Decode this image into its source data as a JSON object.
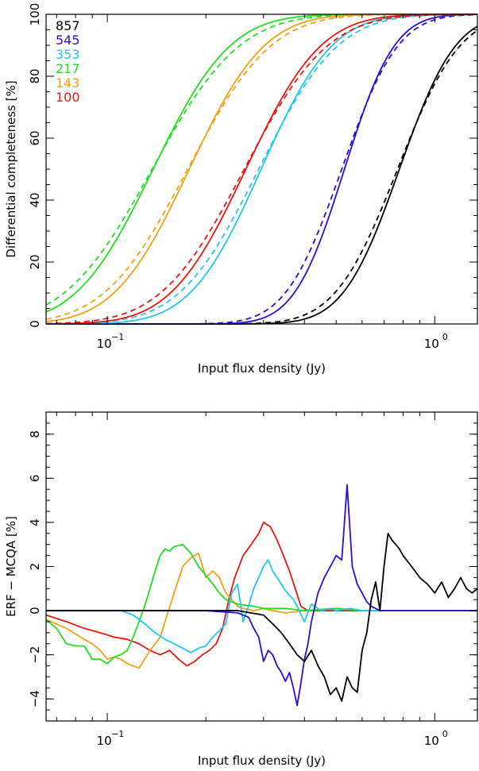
{
  "chart_data": [
    {
      "type": "line",
      "xlabel": "Input flux density (Jy)",
      "ylabel": "Differential completeness [%]",
      "xscale": "log",
      "xlim": [
        0.065,
        1.35
      ],
      "ylim": [
        0,
        100
      ],
      "yticks": [
        0,
        20,
        40,
        60,
        80,
        100
      ],
      "yticklabels": [
        "0",
        "20",
        "40",
        "60",
        "80",
        "100"
      ],
      "xticks_major": [
        0.1,
        1.0
      ],
      "xticklabels": [
        "10",
        "10"
      ],
      "xtick_exponents": [
        "−1",
        "0"
      ],
      "legend_placement": "top-left",
      "legend": [
        {
          "label": "857",
          "color": "#000000"
        },
        {
          "label": "545",
          "color": "#2a0fd0"
        },
        {
          "label": "353",
          "color": "#1ec8f0"
        },
        {
          "label": "217",
          "color": "#1ee01e"
        },
        {
          "label": "143",
          "color": "#f5a015"
        },
        {
          "label": "100",
          "color": "#e8170f"
        }
      ],
      "line_styles": [
        "solid (ERF)",
        "dashed (MCQA)"
      ],
      "series": [
        {
          "freq": "857",
          "color": "#000000",
          "erf_mid": 0.78,
          "erf_width": 0.135,
          "mcqa_mid": 0.77,
          "mcqa_width": 0.15
        },
        {
          "freq": "545",
          "color": "#2a0fd0",
          "erf_mid": 0.53,
          "erf_width": 0.12,
          "mcqa_mid": 0.52,
          "mcqa_width": 0.135
        },
        {
          "freq": "353",
          "color": "#1ec8f0",
          "erf_mid": 0.295,
          "erf_width": 0.17,
          "mcqa_mid": 0.29,
          "mcqa_width": 0.19
        },
        {
          "freq": "217",
          "color": "#1ee01e",
          "erf_mid": 0.138,
          "erf_width": 0.185,
          "mcqa_mid": 0.137,
          "mcqa_width": 0.21
        },
        {
          "freq": "143",
          "color": "#f5a015",
          "erf_mid": 0.178,
          "erf_width": 0.18,
          "mcqa_mid": 0.176,
          "mcqa_width": 0.2
        },
        {
          "freq": "100",
          "color": "#e8170f",
          "erf_mid": 0.265,
          "erf_width": 0.18,
          "mcqa_mid": 0.262,
          "mcqa_width": 0.2
        }
      ]
    },
    {
      "type": "line",
      "xlabel": "Input flux density (Jy)",
      "ylabel": "ERF − MCQA [%]",
      "xscale": "log",
      "xlim": [
        0.065,
        1.35
      ],
      "ylim": [
        -5,
        9
      ],
      "yticks": [
        -4,
        -2,
        0,
        2,
        4,
        6,
        8
      ],
      "yticklabels": [
        "−4",
        "−2",
        "0",
        "2",
        "4",
        "6",
        "8"
      ],
      "xticks_major": [
        0.1,
        1.0
      ],
      "xticklabels": [
        "10",
        "10"
      ],
      "xtick_exponents": [
        "−1",
        "0"
      ],
      "series": [
        {
          "freq": "100",
          "color": "#e8170f",
          "x": [
            0.065,
            0.075,
            0.085,
            0.095,
            0.105,
            0.115,
            0.125,
            0.135,
            0.145,
            0.155,
            0.165,
            0.175,
            0.185,
            0.195,
            0.205,
            0.215,
            0.225,
            0.235,
            0.245,
            0.26,
            0.275,
            0.29,
            0.3,
            0.315,
            0.33,
            0.345,
            0.36,
            0.375,
            0.39,
            0.41,
            0.45,
            0.5,
            0.6,
            0.8,
            1.0,
            1.35
          ],
          "y": [
            -0.2,
            -0.5,
            -0.8,
            -1.0,
            -1.2,
            -1.3,
            -1.5,
            -1.8,
            -2.0,
            -1.8,
            -2.2,
            -2.5,
            -2.3,
            -2.0,
            -1.8,
            -1.5,
            -0.8,
            0.5,
            1.5,
            2.5,
            3.0,
            3.5,
            4.0,
            3.8,
            3.2,
            2.5,
            1.8,
            1.0,
            0.2,
            0.0,
            0.0,
            0.0,
            0.0,
            0.0,
            0.0,
            0.0
          ]
        },
        {
          "freq": "143",
          "color": "#f5a015",
          "x": [
            0.065,
            0.075,
            0.085,
            0.09,
            0.095,
            0.1,
            0.105,
            0.11,
            0.115,
            0.12,
            0.125,
            0.13,
            0.135,
            0.14,
            0.145,
            0.15,
            0.16,
            0.17,
            0.18,
            0.19,
            0.2,
            0.21,
            0.22,
            0.23,
            0.24,
            0.25,
            0.26,
            0.28,
            0.3,
            0.32,
            0.35,
            0.4,
            0.5,
            0.6,
            0.8,
            1.0,
            1.35
          ],
          "y": [
            -0.4,
            -0.8,
            -1.3,
            -1.5,
            -1.8,
            -2.2,
            -2.1,
            -2.2,
            -2.4,
            -2.5,
            -2.6,
            -2.2,
            -1.8,
            -1.5,
            -1.2,
            -0.5,
            0.8,
            2.0,
            2.4,
            2.6,
            1.5,
            1.8,
            1.5,
            0.8,
            0.5,
            0.2,
            0.1,
            0.0,
            0.1,
            0.0,
            -0.1,
            0.0,
            0.1,
            0.0,
            0.0,
            0.0,
            0.0
          ]
        },
        {
          "freq": "217",
          "color": "#1ee01e",
          "x": [
            0.065,
            0.07,
            0.075,
            0.08,
            0.085,
            0.09,
            0.095,
            0.1,
            0.105,
            0.11,
            0.115,
            0.12,
            0.125,
            0.13,
            0.135,
            0.14,
            0.145,
            0.15,
            0.155,
            0.16,
            0.17,
            0.18,
            0.19,
            0.2,
            0.21,
            0.22,
            0.23,
            0.25,
            0.28,
            0.3,
            0.35,
            0.4,
            0.5,
            0.6,
            0.8,
            1.0,
            1.35
          ],
          "y": [
            -0.4,
            -0.8,
            -1.5,
            -1.6,
            -1.6,
            -2.2,
            -2.2,
            -2.4,
            -2.1,
            -2.0,
            -1.8,
            -1.2,
            -0.5,
            0.2,
            1.0,
            1.8,
            2.5,
            2.8,
            2.7,
            2.9,
            3.0,
            2.6,
            2.0,
            1.6,
            1.2,
            0.8,
            0.5,
            0.3,
            0.2,
            0.1,
            0.1,
            0.0,
            0.1,
            0.0,
            0.0,
            0.0,
            0.0
          ]
        },
        {
          "freq": "353",
          "color": "#1ec8f0",
          "x": [
            0.065,
            0.09,
            0.11,
            0.12,
            0.13,
            0.14,
            0.15,
            0.16,
            0.17,
            0.18,
            0.19,
            0.2,
            0.21,
            0.22,
            0.23,
            0.24,
            0.25,
            0.26,
            0.27,
            0.28,
            0.29,
            0.3,
            0.31,
            0.32,
            0.33,
            0.34,
            0.35,
            0.36,
            0.37,
            0.38,
            0.4,
            0.42,
            0.45,
            0.48,
            0.5,
            0.55,
            0.6,
            0.7,
            0.8,
            1.0,
            1.35
          ],
          "y": [
            0.0,
            0.0,
            0.0,
            -0.2,
            -0.6,
            -1.0,
            -1.3,
            -1.5,
            -1.7,
            -1.9,
            -1.7,
            -1.6,
            -1.2,
            -0.9,
            -0.6,
            0.8,
            1.2,
            -0.5,
            0.2,
            1.0,
            1.5,
            2.0,
            2.3,
            1.8,
            1.5,
            1.2,
            0.9,
            0.7,
            0.5,
            0.2,
            -0.5,
            0.3,
            0.0,
            0.1,
            0.0,
            0.1,
            0.0,
            0.0,
            0.0,
            0.0,
            0.0
          ]
        },
        {
          "freq": "545",
          "color": "#2a0fd0",
          "x": [
            0.065,
            0.15,
            0.2,
            0.25,
            0.27,
            0.28,
            0.29,
            0.3,
            0.31,
            0.32,
            0.33,
            0.34,
            0.35,
            0.36,
            0.37,
            0.38,
            0.39,
            0.4,
            0.41,
            0.42,
            0.44,
            0.46,
            0.48,
            0.5,
            0.52,
            0.54,
            0.56,
            0.58,
            0.6,
            0.62,
            0.64,
            0.66,
            0.68,
            0.7,
            0.72,
            0.75,
            0.8,
            0.9,
            1.0,
            1.35
          ],
          "y": [
            0.0,
            0.0,
            0.0,
            -0.1,
            -0.3,
            -0.8,
            -1.2,
            -2.3,
            -1.8,
            -2.0,
            -2.5,
            -2.8,
            -3.2,
            -2.8,
            -3.5,
            -4.3,
            -3.3,
            -2.2,
            -1.5,
            -0.5,
            0.8,
            1.5,
            2.0,
            2.5,
            2.3,
            5.7,
            2.0,
            1.2,
            0.8,
            0.4,
            0.2,
            0.1,
            0.0,
            0.0,
            0.0,
            0.0,
            0.0,
            0.0,
            0.0,
            0.0
          ]
        },
        {
          "freq": "857",
          "color": "#000000",
          "x": [
            0.065,
            0.15,
            0.2,
            0.25,
            0.3,
            0.32,
            0.34,
            0.36,
            0.38,
            0.4,
            0.42,
            0.44,
            0.46,
            0.48,
            0.5,
            0.52,
            0.54,
            0.56,
            0.58,
            0.6,
            0.62,
            0.64,
            0.66,
            0.68,
            0.7,
            0.72,
            0.74,
            0.76,
            0.78,
            0.8,
            0.85,
            0.9,
            0.95,
            1.0,
            1.05,
            1.1,
            1.15,
            1.2,
            1.25,
            1.3,
            1.35
          ],
          "y": [
            0.0,
            0.0,
            0.0,
            0.0,
            -0.2,
            -0.6,
            -1.0,
            -1.5,
            -2.0,
            -2.3,
            -1.8,
            -2.5,
            -3.0,
            -3.8,
            -3.5,
            -4.1,
            -3.0,
            -3.5,
            -3.7,
            -1.8,
            -1.0,
            0.5,
            1.3,
            0.0,
            2.0,
            3.5,
            3.2,
            3.0,
            2.8,
            2.5,
            2.0,
            1.5,
            1.2,
            0.8,
            1.3,
            0.6,
            1.0,
            1.5,
            1.0,
            0.8,
            1.0
          ]
        }
      ]
    }
  ]
}
